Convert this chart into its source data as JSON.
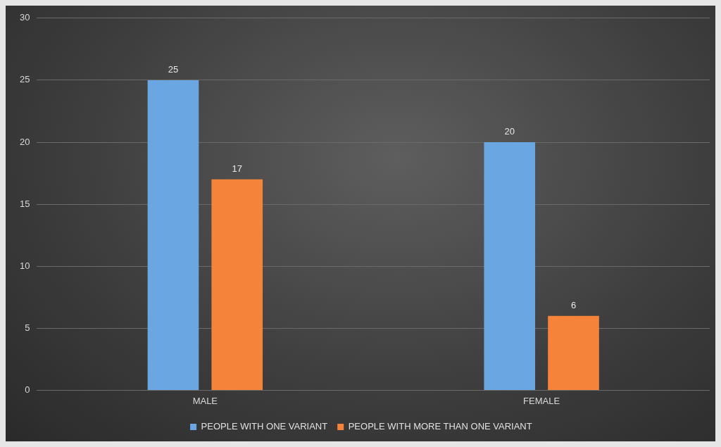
{
  "chart_data": {
    "type": "bar",
    "categories": [
      "MALE",
      "FEMALE"
    ],
    "series": [
      {
        "name": "PEOPLE WITH ONE VARIANT",
        "color": "#6aa6e2",
        "values": [
          25,
          20
        ]
      },
      {
        "name": "PEOPLE WITH MORE THAN ONE VARIANT",
        "color": "#f5843a",
        "values": [
          17,
          6
        ]
      }
    ],
    "ylim": [
      0,
      30
    ],
    "yticks": [
      0,
      5,
      10,
      15,
      20,
      25,
      30
    ],
    "grid": "y",
    "legend": "bottom",
    "data_labels": true
  }
}
